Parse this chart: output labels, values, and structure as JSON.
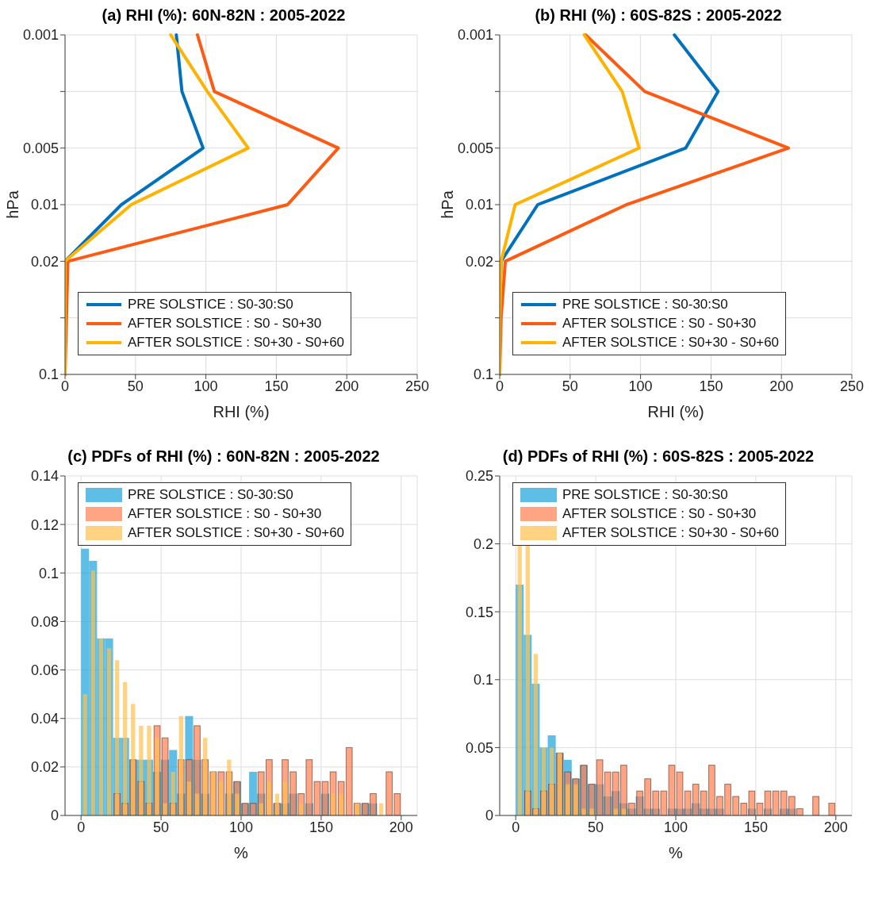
{
  "chart_data": [
    {
      "type": "line",
      "orientation": "horizontal",
      "title": "(a) RHI (%): 60N-82N : 2005-2022",
      "xlabel": "RHI (%)",
      "ylabel": "hPa",
      "xlim": [
        0,
        250
      ],
      "xticks": [
        0,
        50,
        100,
        150,
        200,
        250
      ],
      "categories": [
        "0.001",
        null,
        "0.005",
        "0.01",
        "0.02",
        null,
        "0.1"
      ],
      "grid": true,
      "legend": "bottom",
      "marker": "none",
      "series": [
        {
          "name": "PRE SOLSTICE : S0-30:S0",
          "color": "#0072bd",
          "values": [
            79,
            83,
            98,
            40,
            0,
            0,
            0
          ]
        },
        {
          "name": "AFTER SOLSTICE : S0 - S0+30",
          "color": "#ff5a14",
          "values": [
            94,
            106,
            194,
            158,
            2,
            1,
            0
          ]
        },
        {
          "name": "AFTER SOLSTICE : S0+30 - S0+60",
          "color": "#ffb300",
          "values": [
            75,
            101,
            130,
            47,
            0,
            0,
            0
          ]
        }
      ]
    },
    {
      "type": "line",
      "orientation": "horizontal",
      "title": "(b) RHI (%) : 60S-82S : 2005-2022",
      "xlabel": "RHI (%)",
      "ylabel": "hPa",
      "xlim": [
        0,
        250
      ],
      "xticks": [
        0,
        50,
        100,
        150,
        200,
        250
      ],
      "categories": [
        "0.001",
        null,
        "0.005",
        "0.01",
        "0.02",
        null,
        "0.1"
      ],
      "grid": true,
      "legend": "bottom",
      "marker": "none",
      "series": [
        {
          "name": "PRE SOLSTICE : S0-30:S0",
          "color": "#0072bd",
          "values": [
            124,
            155,
            132,
            27,
            1,
            0,
            0
          ]
        },
        {
          "name": "AFTER SOLSTICE : S0 - S0+30",
          "color": "#ff5a14",
          "values": [
            61,
            103,
            205,
            90,
            4,
            1,
            0
          ]
        },
        {
          "name": "AFTER SOLSTICE : S0+30 - S0+60",
          "color": "#ffb300",
          "values": [
            60,
            87,
            99,
            11,
            1,
            0,
            0
          ]
        }
      ]
    },
    {
      "type": "histogram",
      "title": "(c) PDFs of RHI (%) : 60N-82N : 2005-2022",
      "xlabel": "%",
      "xlim": [
        -10,
        210
      ],
      "xticks": [
        0,
        50,
        100,
        150,
        200
      ],
      "ylim": [
        0,
        0.14
      ],
      "yticks": [
        0,
        0.02,
        0.04,
        0.06,
        0.08,
        0.1,
        0.12,
        0.14
      ],
      "grid": true,
      "legend": "top",
      "bins": [
        0,
        5,
        10,
        15,
        20,
        25,
        30,
        35,
        40,
        45,
        50,
        55,
        60,
        65,
        70,
        75,
        80,
        85,
        90,
        95,
        100,
        105,
        110,
        115,
        120,
        125,
        130,
        135,
        140,
        145,
        150,
        155,
        160,
        165,
        170,
        175,
        180,
        185,
        190,
        195,
        200
      ],
      "series": [
        {
          "name": "PRE SOLSTICE : S0-30:S0",
          "color": "#1aa3dc",
          "values": [
            0.11,
            0.105,
            0.073,
            0.073,
            0.032,
            0.032,
            0.023,
            0.023,
            0.023,
            0.018,
            0.023,
            0.027,
            0.009,
            0.041,
            0.023,
            0.009,
            0,
            0,
            0.009,
            0.014,
            0.005,
            0.018,
            0.009,
            0,
            0.005,
            0.005,
            0.009,
            0,
            0.005,
            0,
            0.009,
            0,
            0,
            0,
            0,
            0.005,
            0.005,
            0,
            0,
            0
          ]
        },
        {
          "name": "AFTER SOLSTICE : S0 - S0+30",
          "color": "#ff7f50",
          "values": [
            0,
            0,
            0,
            0,
            0.009,
            0.005,
            0.023,
            0.014,
            0.005,
            0.037,
            0.032,
            0.005,
            0.023,
            0.023,
            0.037,
            0.023,
            0.018,
            0.018,
            0.018,
            0.014,
            0.005,
            0.005,
            0.018,
            0.023,
            0.005,
            0.023,
            0.018,
            0.009,
            0.023,
            0.014,
            0.014,
            0.018,
            0.014,
            0.028,
            0.005,
            0.005,
            0.009,
            0,
            0.018,
            0.009
          ]
        },
        {
          "name": "AFTER SOLSTICE : S0+30 - S0+60",
          "color": "#ffc14d",
          "values": [
            0.05,
            0.101,
            0.073,
            0.069,
            0.064,
            0.055,
            0.046,
            0.037,
            0.037,
            0.032,
            0.005,
            0.018,
            0.041,
            0.014,
            0.009,
            0.032,
            0.018,
            0.014,
            0.023,
            0.009,
            0,
            0,
            0.005,
            0.014,
            0.009,
            0.014,
            0,
            0.005,
            0,
            0,
            0,
            0.009,
            0.009,
            0,
            0.005,
            0,
            0,
            0.005,
            0,
            0
          ]
        }
      ]
    },
    {
      "type": "histogram",
      "title": "(d) PDFs of RHI (%) : 60S-82S : 2005-2022",
      "xlabel": "%",
      "xlim": [
        -10,
        210
      ],
      "xticks": [
        0,
        50,
        100,
        150,
        200
      ],
      "ylim": [
        0,
        0.25
      ],
      "yticks": [
        0,
        0.05,
        0.1,
        0.15,
        0.2,
        0.25
      ],
      "grid": true,
      "legend": "top",
      "bins": [
        0,
        5,
        10,
        15,
        20,
        25,
        30,
        35,
        40,
        45,
        50,
        55,
        60,
        65,
        70,
        75,
        80,
        85,
        90,
        95,
        100,
        105,
        110,
        115,
        120,
        125,
        130,
        135,
        140,
        145,
        150,
        155,
        160,
        165,
        170,
        175,
        180,
        185,
        190,
        195,
        200
      ],
      "series": [
        {
          "name": "PRE SOLSTICE : S0-30:S0",
          "color": "#1aa3dc",
          "values": [
            0.17,
            0.133,
            0.097,
            0.05,
            0.059,
            0.046,
            0.041,
            0.027,
            0.037,
            0.023,
            0.023,
            0.014,
            0.018,
            0.009,
            0.005,
            0.014,
            0.005,
            0.005,
            0,
            0.005,
            0.005,
            0.005,
            0.009,
            0.005,
            0.005,
            0.005,
            0,
            0,
            0,
            0.005,
            0,
            0.005,
            0,
            0.005,
            0.005,
            0,
            0,
            0,
            0,
            0
          ]
        },
        {
          "name": "AFTER SOLSTICE : S0 - S0+30",
          "color": "#ff7f50",
          "values": [
            0,
            0.018,
            0.005,
            0.018,
            0.023,
            0.046,
            0.032,
            0.027,
            0.037,
            0.023,
            0.041,
            0.032,
            0.032,
            0.037,
            0.009,
            0.018,
            0.027,
            0.018,
            0.018,
            0.037,
            0.032,
            0.018,
            0.023,
            0.018,
            0.037,
            0.014,
            0.023,
            0.014,
            0.009,
            0.018,
            0.009,
            0.018,
            0.018,
            0.018,
            0.014,
            0.005,
            0,
            0.014,
            0,
            0.009
          ]
        },
        {
          "name": "AFTER SOLSTICE : S0+30 - S0+60",
          "color": "#ffc14d",
          "values": [
            0.2,
            0.2,
            0.119,
            0.05,
            0.05,
            0.046,
            0.023,
            0.023,
            0.005,
            0.005,
            0,
            0,
            0.005,
            0.005,
            0,
            0,
            0,
            0,
            0,
            0,
            0,
            0,
            0,
            0,
            0,
            0,
            0,
            0,
            0,
            0,
            0,
            0,
            0,
            0,
            0,
            0,
            0,
            0,
            0,
            0
          ]
        }
      ]
    }
  ]
}
